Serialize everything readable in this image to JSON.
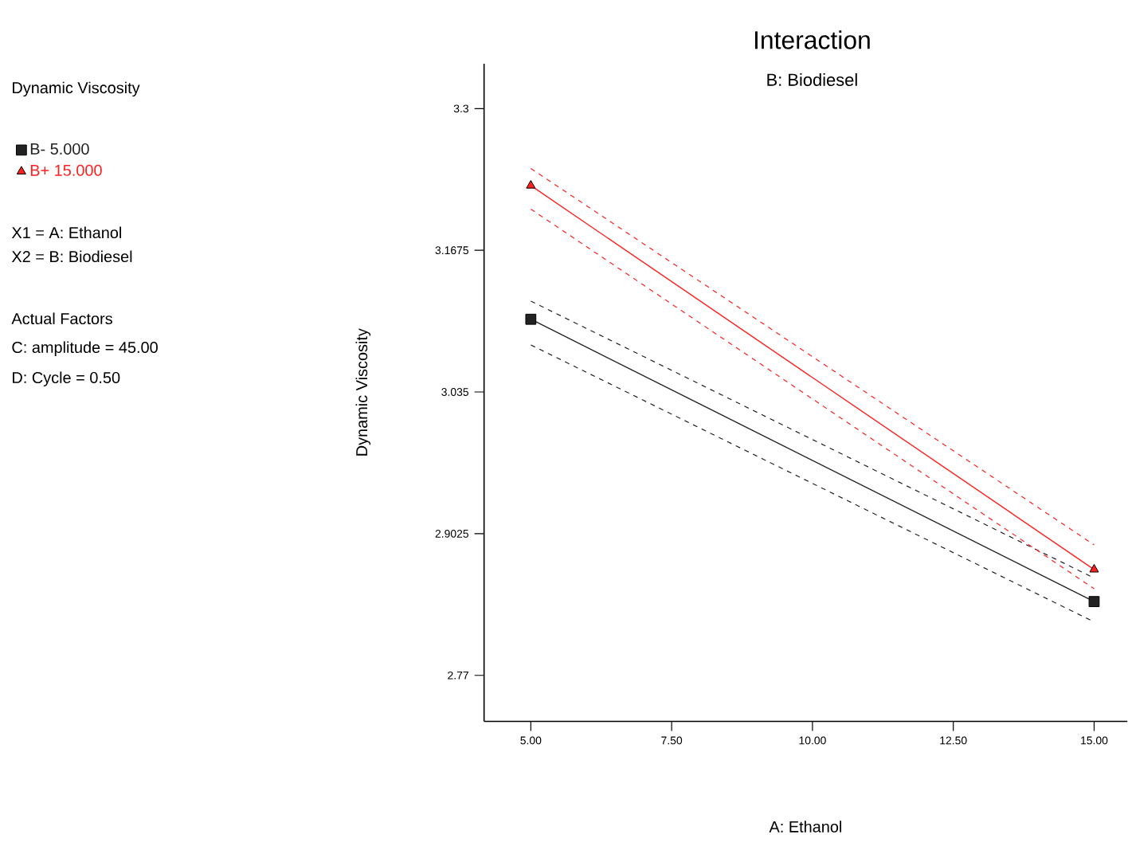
{
  "chart_data": {
    "type": "line",
    "title": "Interaction",
    "subtitle": "B: Biodiesel",
    "xlabel": "A: Ethanol",
    "ylabel": "Dynamic Viscosity",
    "x": [
      5,
      15
    ],
    "series": [
      {
        "name": "B- 5.000",
        "color": "#222222",
        "marker": "square",
        "values": [
          3.103,
          2.839
        ]
      },
      {
        "name": "B+ 15.000",
        "color": "#ff2020",
        "marker": "triangle",
        "values": [
          3.228,
          2.869
        ]
      },
      {
        "color": "#222222",
        "marker": "none",
        "line_style": "dashed",
        "values": [
          3.079,
          2.82
        ]
      },
      {
        "color": "#222222",
        "marker": "none",
        "line_style": "dashed",
        "values": [
          3.12,
          2.861
        ]
      },
      {
        "color": "#ff2020",
        "marker": "none",
        "line_style": "dashed",
        "values": [
          3.206,
          2.851
        ]
      },
      {
        "color": "#ff2020",
        "marker": "none",
        "line_style": "dashed",
        "values": [
          3.244,
          2.892
        ]
      }
    ],
    "xlim": [
      4.17,
      15.59
    ],
    "ylim": [
      2.727,
      3.342
    ],
    "xticks": [
      {
        "value": 5,
        "label": "5.00"
      },
      {
        "value": 7.5,
        "label": "7.50"
      },
      {
        "value": 10,
        "label": "10.00"
      },
      {
        "value": 12.5,
        "label": "12.50"
      },
      {
        "value": 15,
        "label": "15.00"
      }
    ],
    "yticks": [
      {
        "value": 2.77,
        "label": "2.77"
      },
      {
        "value": 2.9025,
        "label": "2.9025"
      },
      {
        "value": 3.035,
        "label": "3.035"
      },
      {
        "value": 3.1675,
        "label": "3.1675"
      },
      {
        "value": 3.3,
        "label": "3.3"
      }
    ],
    "legend": "left",
    "grid": false,
    "annotations": [
      "Dynamic Viscosity",
      "X1 = A: Ethanol",
      "X2 = B: Biodiesel",
      "Actual Factors",
      "C: amplitude = 45.00",
      "D: Cycle = 0.50"
    ]
  }
}
